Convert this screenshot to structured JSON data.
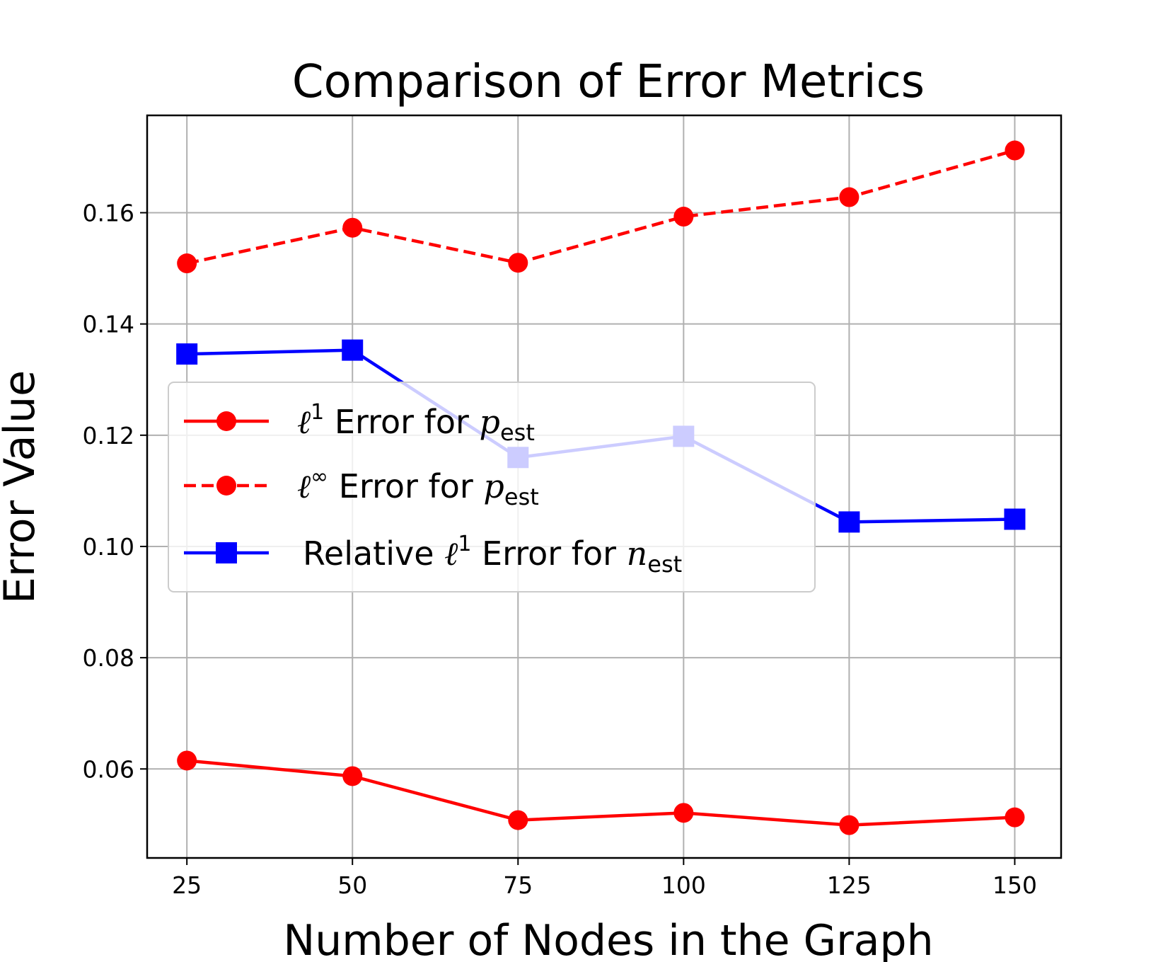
{
  "chart_data": {
    "type": "line",
    "title": "Comparison of Error Metrics",
    "xlabel": "Number of Nodes in the Graph",
    "ylabel": "Error Value",
    "x": [
      25,
      50,
      75,
      100,
      125,
      150
    ],
    "xlim": [
      19,
      157
    ],
    "ylim": [
      0.044,
      0.1775
    ],
    "xticks": [
      "25",
      "50",
      "75",
      "100",
      "125",
      "150"
    ],
    "yticks": [
      "0.06",
      "0.08",
      "0.10",
      "0.12",
      "0.14",
      "0.16"
    ],
    "ytick_values": [
      0.06,
      0.08,
      0.1,
      0.12,
      0.14,
      0.16
    ],
    "grid": true,
    "legend_position": "center-left",
    "series": [
      {
        "key": "l1_p",
        "values": [
          0.0615,
          0.0587,
          0.0508,
          0.0521,
          0.0499,
          0.0513
        ],
        "color": "#ff0000",
        "linestyle": "solid",
        "marker": "circle",
        "legend": {
          "symbol": "ℓ",
          "sup": "1",
          "text": " Error for ",
          "var": "p",
          "sub": "est"
        }
      },
      {
        "key": "linf_p",
        "values": [
          0.1509,
          0.1573,
          0.151,
          0.1593,
          0.1628,
          0.1712
        ],
        "color": "#ff0000",
        "linestyle": "dashed",
        "marker": "circle",
        "legend": {
          "symbol": "ℓ",
          "sup": "∞",
          "text": " Error for ",
          "var": "p",
          "sub": "est"
        }
      },
      {
        "key": "rel_l1_n",
        "values": [
          0.1346,
          0.1353,
          0.116,
          0.1198,
          0.1044,
          0.1049
        ],
        "color": "#0000ff",
        "linestyle": "solid",
        "marker": "square",
        "legend": {
          "prefix": "Relative ",
          "symbol": "ℓ",
          "sup": "1",
          "text": " Error for ",
          "var": "n",
          "sub": "est"
        }
      }
    ]
  }
}
